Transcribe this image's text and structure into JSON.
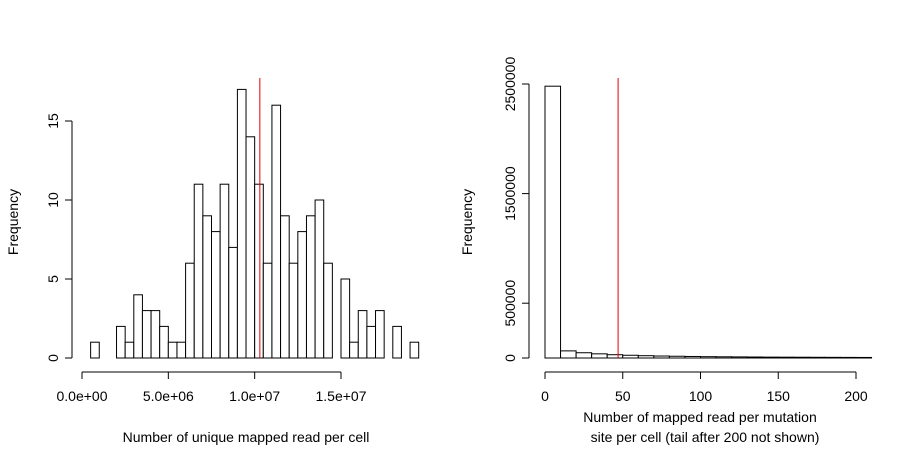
{
  "chart_data": [
    {
      "type": "bar",
      "xlabel": "Number of unique mapped read per cell",
      "ylabel": "Frequency",
      "x_ticks": [
        0,
        5000000,
        10000000,
        15000000
      ],
      "x_tick_labels": [
        "0.0e+00",
        "5.0e+06",
        "1.0e+07",
        "1.5e+07"
      ],
      "y_ticks": [
        0,
        5,
        10,
        15
      ],
      "y_tick_labels": [
        "0",
        "5",
        "10",
        "15"
      ],
      "ylim": [
        0,
        17
      ],
      "bin_start": 500000,
      "bin_width": 500000,
      "counts": [
        1,
        0,
        0,
        2,
        1,
        4,
        3,
        3,
        2,
        1,
        1,
        6,
        11,
        9,
        8,
        11,
        7,
        17,
        14,
        11,
        6,
        16,
        9,
        6,
        8,
        9,
        10,
        6,
        0,
        5,
        1,
        3,
        2,
        3,
        0,
        2,
        0,
        1
      ],
      "reference_line_x": 10300000,
      "reference_line_color": "#e00000"
    },
    {
      "type": "bar",
      "xlabel_lines": [
        "Number of mapped read  per mutation",
        "site per cell (tail after 200 not shown)"
      ],
      "ylabel": "Frequency",
      "x_ticks": [
        0,
        50,
        100,
        150,
        200
      ],
      "x_tick_labels": [
        "0",
        "50",
        "100",
        "150",
        "200"
      ],
      "y_ticks": [
        0,
        500000,
        1500000,
        2500000
      ],
      "y_tick_labels": [
        "0",
        "500000",
        "1500000",
        "2500000"
      ],
      "ylim": [
        0,
        2500000
      ],
      "bin_start": 0,
      "bin_width": 10,
      "counts": [
        2480000,
        65000,
        48000,
        38000,
        30000,
        25000,
        21000,
        18000,
        16000,
        14000,
        12000,
        11000,
        10000,
        9000,
        8000,
        7500,
        7000,
        6500,
        6000,
        5500,
        5000
      ],
      "reference_line_x": 47,
      "reference_line_color": "#e00000"
    }
  ]
}
